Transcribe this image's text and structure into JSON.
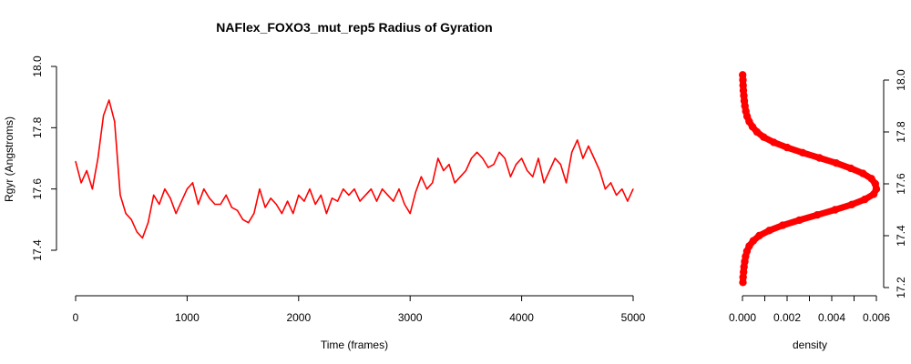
{
  "chart_data": [
    {
      "type": "line",
      "title": "NAFlex_FOXO3_mut_rep5 Radius of Gyration",
      "xlabel": "Time (frames)",
      "ylabel": "Rgyr (Angstroms)",
      "xlim": [
        0,
        5000
      ],
      "ylim": [
        17.27,
        18.01
      ],
      "xticks": [
        0,
        1000,
        2000,
        3000,
        4000,
        5000
      ],
      "xtick_labels": [
        "0",
        "1000",
        "2000",
        "3000",
        "4000",
        "5000"
      ],
      "yticks": [
        17.4,
        17.6,
        17.8,
        18.0
      ],
      "ytick_labels": [
        "17.4",
        "17.6",
        "17.8",
        "18.0"
      ],
      "grid": false,
      "color": "#ff0000",
      "series": [
        {
          "x": [
            0,
            50,
            100,
            150,
            200,
            250,
            300,
            350,
            400,
            450,
            500,
            550,
            600,
            650,
            700,
            750,
            800,
            850,
            900,
            950,
            1000,
            1050,
            1100,
            1150,
            1200,
            1250,
            1300,
            1350,
            1400,
            1450,
            1500,
            1550,
            1600,
            1650,
            1700,
            1750,
            1800,
            1850,
            1900,
            1950,
            2000,
            2050,
            2100,
            2150,
            2200,
            2250,
            2300,
            2350,
            2400,
            2450,
            2500,
            2550,
            2600,
            2650,
            2700,
            2750,
            2800,
            2850,
            2900,
            2950,
            3000,
            3050,
            3100,
            3150,
            3200,
            3250,
            3300,
            3350,
            3400,
            3450,
            3500,
            3550,
            3600,
            3650,
            3700,
            3750,
            3800,
            3850,
            3900,
            3950,
            4000,
            4050,
            4100,
            4150,
            4200,
            4250,
            4300,
            4350,
            4400,
            4450,
            4500,
            4550,
            4600,
            4650,
            4700,
            4750,
            4800,
            4850,
            4900,
            4950,
            5000
          ],
          "y": [
            17.69,
            17.62,
            17.66,
            17.6,
            17.7,
            17.84,
            17.89,
            17.82,
            17.58,
            17.52,
            17.5,
            17.46,
            17.44,
            17.49,
            17.58,
            17.55,
            17.6,
            17.57,
            17.52,
            17.56,
            17.6,
            17.62,
            17.55,
            17.6,
            17.57,
            17.55,
            17.55,
            17.58,
            17.54,
            17.53,
            17.5,
            17.49,
            17.52,
            17.6,
            17.54,
            17.57,
            17.55,
            17.52,
            17.56,
            17.52,
            17.58,
            17.56,
            17.6,
            17.55,
            17.58,
            17.52,
            17.57,
            17.56,
            17.6,
            17.58,
            17.6,
            17.56,
            17.58,
            17.6,
            17.56,
            17.6,
            17.58,
            17.56,
            17.6,
            17.55,
            17.52,
            17.59,
            17.64,
            17.6,
            17.62,
            17.7,
            17.66,
            17.68,
            17.62,
            17.64,
            17.66,
            17.7,
            17.72,
            17.7,
            17.67,
            17.68,
            17.72,
            17.7,
            17.64,
            17.68,
            17.7,
            17.66,
            17.64,
            17.7,
            17.62,
            17.66,
            17.7,
            17.68,
            17.62,
            17.72,
            17.76,
            17.7,
            17.74,
            17.7,
            17.66,
            17.6,
            17.62,
            17.58,
            17.6,
            17.56,
            17.6
          ]
        }
      ]
    },
    {
      "type": "area",
      "title": "",
      "xlabel": "density",
      "ylabel": "",
      "xlim": [
        0,
        0.006
      ],
      "ylim": [
        17.2,
        18.02
      ],
      "xticks": [
        0,
        0.001,
        0.002,
        0.003,
        0.004,
        0.005,
        0.006
      ],
      "xtick_labels": [
        "0.000",
        "",
        "0.002",
        "",
        "0.004",
        "",
        "0.006"
      ],
      "yticks": [
        17.2,
        17.4,
        17.6,
        17.8,
        18.0
      ],
      "ytick_labels": [
        "17.2",
        "17.4",
        "17.6",
        "17.8",
        "18.0"
      ],
      "y_axis_side": "right",
      "grid": false,
      "color": "#ff0000",
      "density_curve": {
        "y": [
          17.22,
          17.24,
          17.26,
          17.28,
          17.3,
          17.32,
          17.34,
          17.36,
          17.38,
          17.4,
          17.42,
          17.44,
          17.46,
          17.48,
          17.5,
          17.52,
          17.54,
          17.56,
          17.58,
          17.6,
          17.62,
          17.64,
          17.66,
          17.68,
          17.7,
          17.72,
          17.74,
          17.76,
          17.78,
          17.8,
          17.82,
          17.84,
          17.86,
          17.88,
          17.9,
          17.92,
          17.94,
          17.96,
          17.98,
          18.0,
          18.02
        ],
        "density": [
          2e-05,
          3e-05,
          5e-05,
          7e-05,
          0.0001,
          0.00014,
          0.0002,
          0.0003,
          0.00048,
          0.00075,
          0.0012,
          0.0018,
          0.00255,
          0.00335,
          0.00415,
          0.0049,
          0.00548,
          0.00588,
          0.006,
          0.00595,
          0.00578,
          0.0054,
          0.00485,
          0.0042,
          0.00345,
          0.0027,
          0.002,
          0.0014,
          0.00095,
          0.00065,
          0.00045,
          0.0003,
          0.00021,
          0.00015,
          0.00011,
          8e-05,
          6e-05,
          4e-05,
          3e-05,
          2e-05,
          1e-05
        ]
      }
    }
  ]
}
